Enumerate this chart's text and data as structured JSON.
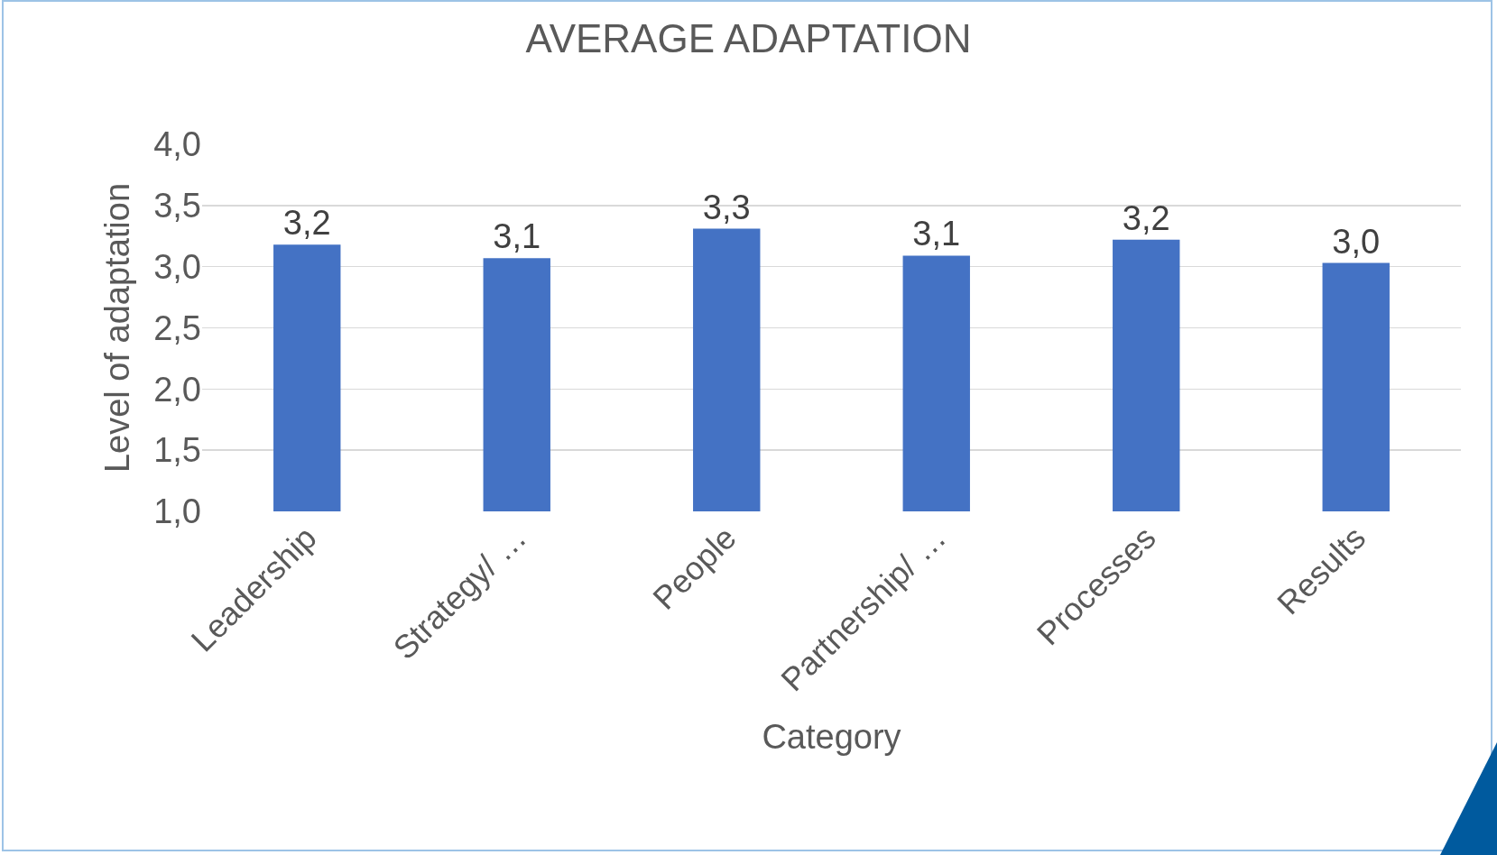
{
  "chart_data": {
    "type": "bar",
    "title": "AVERAGE ADAPTATION",
    "xlabel": "Category",
    "ylabel": "Level of adaptation",
    "categories": [
      "Leadership",
      "Strategy/ …",
      "People",
      "Partnership/ …",
      "Processes",
      "Results"
    ],
    "values": [
      3.18,
      3.07,
      3.31,
      3.09,
      3.22,
      3.03
    ],
    "value_labels": [
      "3,2",
      "3,1",
      "3,3",
      "3,1",
      "3,2",
      "3,0"
    ],
    "color": "#4472c4",
    "ylim": [
      1,
      4
    ],
    "yticks": [
      {
        "value": 1,
        "label": "1,0"
      },
      {
        "value": 1.5,
        "label": "1,5"
      },
      {
        "value": 2,
        "label": "2,0"
      },
      {
        "value": 2.5,
        "label": "2,5"
      },
      {
        "value": 3,
        "label": "3,0"
      },
      {
        "value": 3.5,
        "label": "3,5"
      },
      {
        "value": 4,
        "label": "4,0"
      }
    ],
    "grid": "y",
    "legend": false
  }
}
